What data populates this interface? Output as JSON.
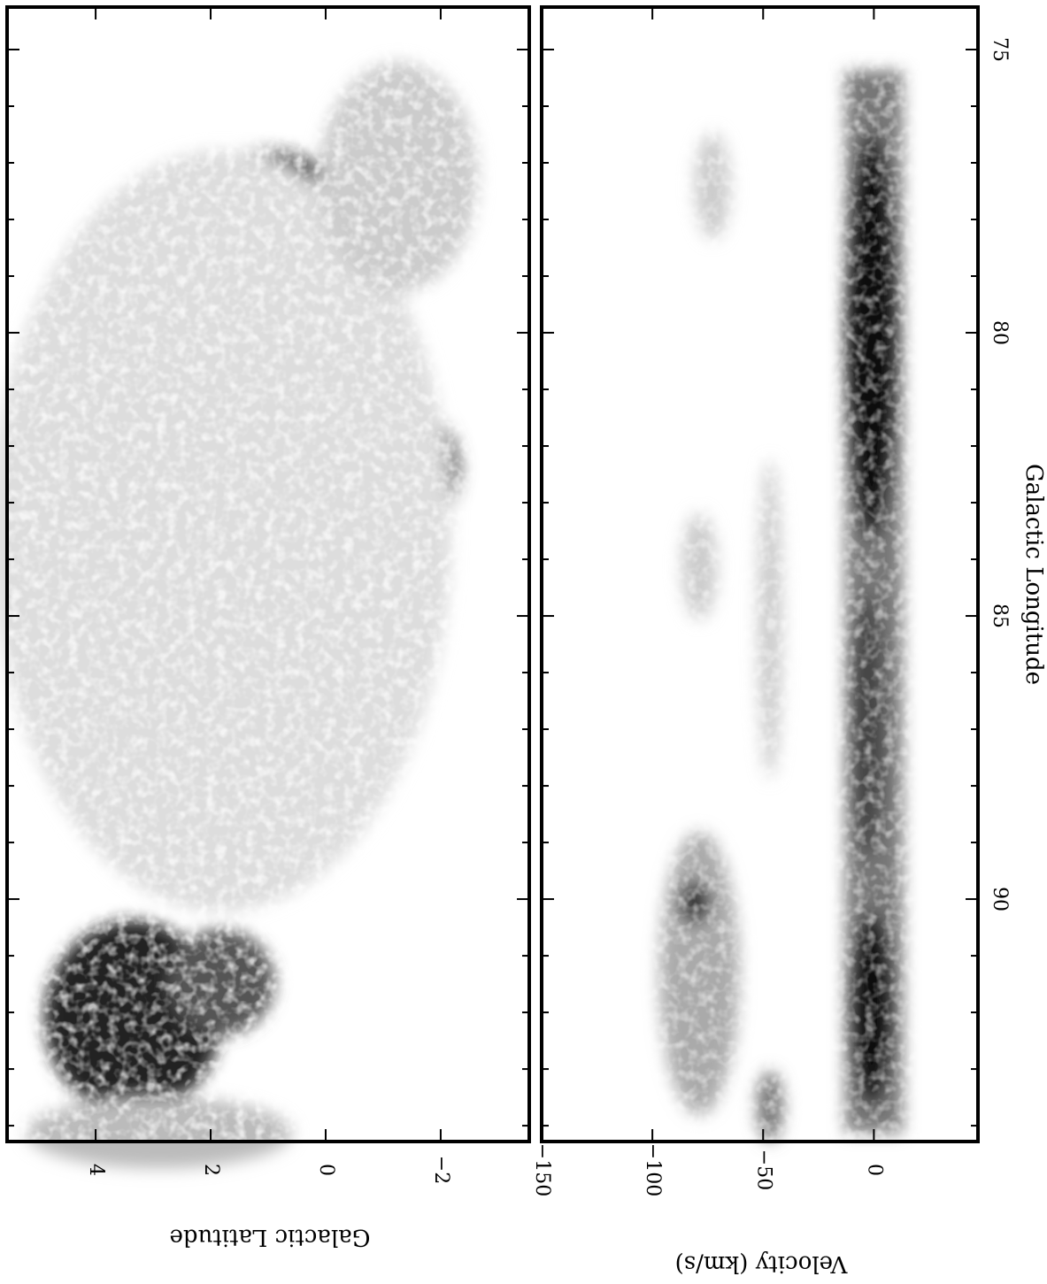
{
  "chart_data": [
    {
      "type": "image",
      "ylabel": "Galactic Latitude",
      "xlim": [
        74.25,
        94.28
      ],
      "xticks": [
        75,
        80,
        85,
        90
      ],
      "xminorticks": [
        76,
        77,
        78,
        79,
        81,
        82,
        83,
        84,
        86,
        87,
        88,
        89,
        91,
        92,
        93,
        94
      ],
      "ylim": [
        -3.54,
        5.54
      ],
      "yticks": [
        4,
        2,
        0,
        {
          "value": -2,
          "label": "−2"
        }
      ]
    },
    {
      "type": "image",
      "xlabel": "Galactic Longitude",
      "ylabel": "Velocity (km/s)",
      "xlim": [
        74.25,
        94.28
      ],
      "xticks": [
        75,
        80,
        85,
        90
      ],
      "xminorticks": [
        76,
        77,
        78,
        79,
        81,
        82,
        83,
        84,
        86,
        87,
        88,
        89,
        91,
        92,
        93,
        94
      ],
      "ylim": [
        -150,
        47
      ],
      "yticks": [
        {
          "value": -150,
          "label": "−150"
        },
        {
          "value": -100,
          "label": "−100"
        },
        {
          "value": -50,
          "label": "−50"
        },
        0
      ]
    }
  ]
}
